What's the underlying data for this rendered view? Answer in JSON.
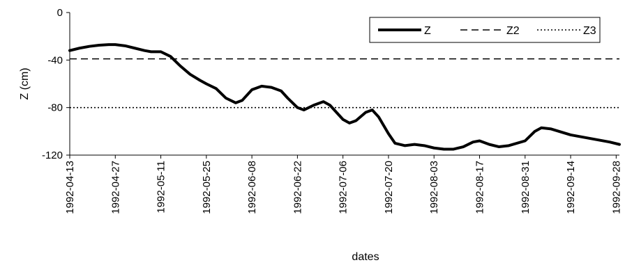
{
  "chart_data": {
    "type": "line",
    "xlabel": "dates",
    "ylabel": "Z (cm)",
    "ylim": [
      -120,
      0
    ],
    "yticks": [
      0,
      -40,
      -80,
      -120
    ],
    "xlim": [
      "1992-04-13",
      "1992-09-29"
    ],
    "xticks": [
      "1992-04-13",
      "1992-04-27",
      "1992-05-11",
      "1992-05-25",
      "1992-06-08",
      "1992-06-22",
      "1992-07-06",
      "1992-07-20",
      "1992-08-03",
      "1992-08-17",
      "1992-08-31",
      "1992-09-14",
      "1992-09-28"
    ],
    "grid": false,
    "legend": "top-right",
    "series": [
      {
        "name": "Z",
        "style": "solid-thick",
        "color": "#000000",
        "points": [
          [
            "1992-04-13",
            -32
          ],
          [
            "1992-04-16",
            -30
          ],
          [
            "1992-04-19",
            -28.5
          ],
          [
            "1992-04-22",
            -27.5
          ],
          [
            "1992-04-25",
            -27
          ],
          [
            "1992-04-27",
            -27
          ],
          [
            "1992-04-30",
            -28
          ],
          [
            "1992-05-03",
            -30
          ],
          [
            "1992-05-06",
            -32
          ],
          [
            "1992-05-08",
            -33
          ],
          [
            "1992-05-11",
            -33
          ],
          [
            "1992-05-14",
            -37
          ],
          [
            "1992-05-17",
            -45
          ],
          [
            "1992-05-20",
            -52
          ],
          [
            "1992-05-23",
            -57
          ],
          [
            "1992-05-25",
            -60
          ],
          [
            "1992-05-28",
            -64
          ],
          [
            "1992-05-31",
            -72
          ],
          [
            "1992-06-03",
            -76
          ],
          [
            "1992-06-05",
            -74
          ],
          [
            "1992-06-08",
            -65
          ],
          [
            "1992-06-11",
            -62
          ],
          [
            "1992-06-14",
            -63
          ],
          [
            "1992-06-17",
            -66
          ],
          [
            "1992-06-19",
            -72
          ],
          [
            "1992-06-22",
            -80
          ],
          [
            "1992-06-24",
            -82
          ],
          [
            "1992-06-27",
            -78
          ],
          [
            "1992-06-30",
            -75
          ],
          [
            "1992-07-02",
            -78
          ],
          [
            "1992-07-06",
            -90
          ],
          [
            "1992-07-08",
            -93
          ],
          [
            "1992-07-10",
            -91
          ],
          [
            "1992-07-13",
            -84
          ],
          [
            "1992-07-15",
            -82
          ],
          [
            "1992-07-17",
            -88
          ],
          [
            "1992-07-20",
            -102
          ],
          [
            "1992-07-22",
            -110
          ],
          [
            "1992-07-25",
            -112
          ],
          [
            "1992-07-28",
            -111
          ],
          [
            "1992-07-31",
            -112
          ],
          [
            "1992-08-03",
            -114
          ],
          [
            "1992-08-06",
            -115
          ],
          [
            "1992-08-09",
            -115
          ],
          [
            "1992-08-12",
            -113
          ],
          [
            "1992-08-15",
            -109
          ],
          [
            "1992-08-17",
            -108
          ],
          [
            "1992-08-20",
            -111
          ],
          [
            "1992-08-23",
            -113
          ],
          [
            "1992-08-26",
            -112
          ],
          [
            "1992-08-31",
            -108
          ],
          [
            "1992-09-03",
            -100
          ],
          [
            "1992-09-05",
            -97
          ],
          [
            "1992-09-08",
            -98
          ],
          [
            "1992-09-14",
            -103
          ],
          [
            "1992-09-20",
            -106
          ],
          [
            "1992-09-26",
            -109
          ],
          [
            "1992-09-29",
            -111
          ]
        ]
      },
      {
        "name": "Z2",
        "style": "dashed",
        "color": "#000000",
        "points": [
          [
            "1992-04-13",
            -39
          ],
          [
            "1992-09-29",
            -39
          ]
        ]
      },
      {
        "name": "Z3",
        "style": "dotted",
        "color": "#000000",
        "points": [
          [
            "1992-04-13",
            -80
          ],
          [
            "1992-09-29",
            -80
          ]
        ]
      }
    ]
  }
}
